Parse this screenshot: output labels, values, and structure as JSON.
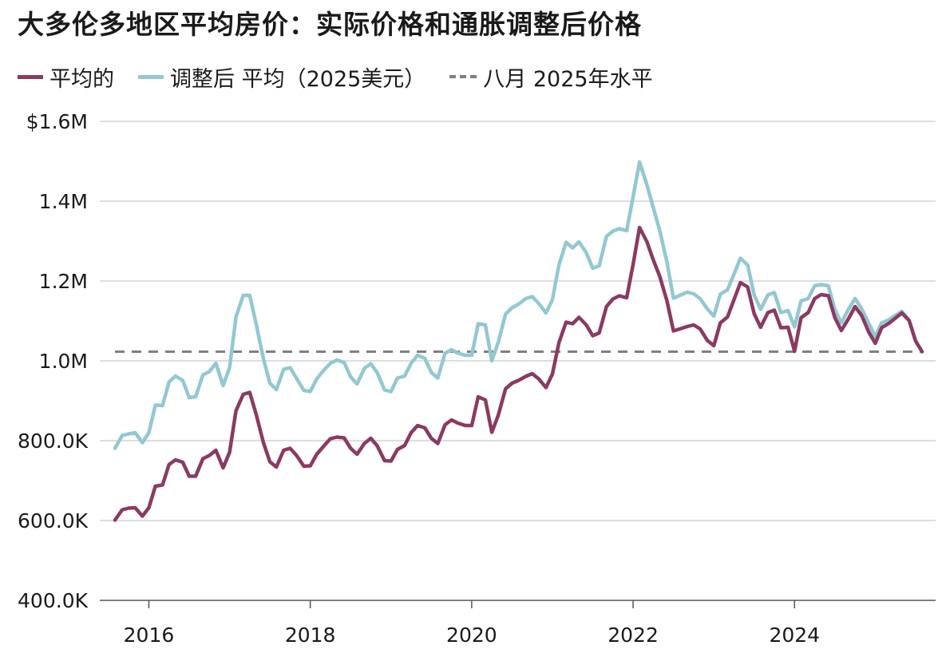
{
  "chart_data": {
    "type": "line",
    "title": "大多伦多地区平均房价：实际价格和通胀调整后价格",
    "xlabel": "",
    "ylabel": "",
    "ylim": [
      400000,
      1600000
    ],
    "xlim": [
      2015.58,
      2025.58
    ],
    "grid": true,
    "legend_position": "top-left",
    "y_ticks": [
      {
        "value": 1600000,
        "label": "$1.6M"
      },
      {
        "value": 1400000,
        "label": "1.4M"
      },
      {
        "value": 1200000,
        "label": "1.2M"
      },
      {
        "value": 1000000,
        "label": "1.0M"
      },
      {
        "value": 800000,
        "label": "800.0K"
      },
      {
        "value": 600000,
        "label": "600.0K"
      },
      {
        "value": 400000,
        "label": "400.0K"
      }
    ],
    "x_ticks": [
      {
        "value": 2016,
        "label": "2016"
      },
      {
        "value": 2018,
        "label": "2018"
      },
      {
        "value": 2020,
        "label": "2020"
      },
      {
        "value": 2022,
        "label": "2022"
      },
      {
        "value": 2024,
        "label": "2024"
      }
    ],
    "series": [
      {
        "name": "平均的",
        "color": "#8b3a62",
        "dash": false,
        "points": [
          [
            2015.58,
            601000
          ],
          [
            2015.67,
            627000
          ],
          [
            2015.75,
            631000
          ],
          [
            2015.83,
            632000
          ],
          [
            2015.92,
            611000
          ],
          [
            2016.0,
            632000
          ],
          [
            2016.08,
            686000
          ],
          [
            2016.17,
            689000
          ],
          [
            2016.25,
            740000
          ],
          [
            2016.33,
            752000
          ],
          [
            2016.42,
            746000
          ],
          [
            2016.5,
            711000
          ],
          [
            2016.58,
            711000
          ],
          [
            2016.67,
            755000
          ],
          [
            2016.75,
            763000
          ],
          [
            2016.83,
            776000
          ],
          [
            2016.92,
            732000
          ],
          [
            2017.0,
            771000
          ],
          [
            2017.08,
            875000
          ],
          [
            2017.17,
            916000
          ],
          [
            2017.25,
            921000
          ],
          [
            2017.33,
            866000
          ],
          [
            2017.42,
            795000
          ],
          [
            2017.5,
            747000
          ],
          [
            2017.58,
            734000
          ],
          [
            2017.67,
            776000
          ],
          [
            2017.75,
            781000
          ],
          [
            2017.83,
            763000
          ],
          [
            2017.92,
            736000
          ],
          [
            2018.0,
            737000
          ],
          [
            2018.08,
            766000
          ],
          [
            2018.17,
            787000
          ],
          [
            2018.25,
            805000
          ],
          [
            2018.33,
            809000
          ],
          [
            2018.42,
            807000
          ],
          [
            2018.5,
            781000
          ],
          [
            2018.58,
            766000
          ],
          [
            2018.67,
            793000
          ],
          [
            2018.75,
            806000
          ],
          [
            2018.83,
            787000
          ],
          [
            2018.92,
            750000
          ],
          [
            2019.0,
            749000
          ],
          [
            2019.08,
            778000
          ],
          [
            2019.17,
            788000
          ],
          [
            2019.25,
            820000
          ],
          [
            2019.33,
            838000
          ],
          [
            2019.42,
            832000
          ],
          [
            2019.5,
            806000
          ],
          [
            2019.58,
            793000
          ],
          [
            2019.67,
            840000
          ],
          [
            2019.75,
            852000
          ],
          [
            2019.83,
            844000
          ],
          [
            2019.92,
            838000
          ],
          [
            2020.0,
            838000
          ],
          [
            2020.08,
            910000
          ],
          [
            2020.17,
            902000
          ],
          [
            2020.25,
            821000
          ],
          [
            2020.33,
            864000
          ],
          [
            2020.42,
            930000
          ],
          [
            2020.5,
            944000
          ],
          [
            2020.58,
            951000
          ],
          [
            2020.67,
            961000
          ],
          [
            2020.75,
            968000
          ],
          [
            2020.83,
            955000
          ],
          [
            2020.92,
            933000
          ],
          [
            2021.0,
            967000
          ],
          [
            2021.08,
            1045000
          ],
          [
            2021.17,
            1097000
          ],
          [
            2021.25,
            1093000
          ],
          [
            2021.33,
            1109000
          ],
          [
            2021.42,
            1090000
          ],
          [
            2021.5,
            1063000
          ],
          [
            2021.58,
            1070000
          ],
          [
            2021.67,
            1136000
          ],
          [
            2021.75,
            1155000
          ],
          [
            2021.83,
            1163000
          ],
          [
            2021.92,
            1158000
          ],
          [
            2022.0,
            1242000
          ],
          [
            2022.08,
            1334000
          ],
          [
            2022.17,
            1299000
          ],
          [
            2022.25,
            1253000
          ],
          [
            2022.33,
            1212000
          ],
          [
            2022.42,
            1150000
          ],
          [
            2022.5,
            1075000
          ],
          [
            2022.58,
            1080000
          ],
          [
            2022.67,
            1086000
          ],
          [
            2022.75,
            1090000
          ],
          [
            2022.83,
            1080000
          ],
          [
            2022.92,
            1051000
          ],
          [
            2023.0,
            1038000
          ],
          [
            2023.08,
            1095000
          ],
          [
            2023.17,
            1110000
          ],
          [
            2023.25,
            1153000
          ],
          [
            2023.33,
            1196000
          ],
          [
            2023.42,
            1185000
          ],
          [
            2023.5,
            1118000
          ],
          [
            2023.58,
            1084000
          ],
          [
            2023.67,
            1121000
          ],
          [
            2023.75,
            1127000
          ],
          [
            2023.83,
            1083000
          ],
          [
            2023.92,
            1084000
          ],
          [
            2024.0,
            1024000
          ],
          [
            2024.08,
            1108000
          ],
          [
            2024.17,
            1121000
          ],
          [
            2024.25,
            1156000
          ],
          [
            2024.33,
            1166000
          ],
          [
            2024.42,
            1163000
          ],
          [
            2024.5,
            1108000
          ],
          [
            2024.58,
            1076000
          ],
          [
            2024.67,
            1106000
          ],
          [
            2024.75,
            1136000
          ],
          [
            2024.83,
            1114000
          ],
          [
            2024.92,
            1072000
          ],
          [
            2025.0,
            1044000
          ],
          [
            2025.08,
            1083000
          ],
          [
            2025.17,
            1094000
          ],
          [
            2025.25,
            1107000
          ],
          [
            2025.33,
            1120000
          ],
          [
            2025.42,
            1101000
          ],
          [
            2025.5,
            1050000
          ],
          [
            2025.58,
            1023000
          ]
        ]
      },
      {
        "name": "调整后 平均（2025美元）",
        "color": "#92c8d2",
        "dash": false,
        "points": [
          [
            2015.58,
            781000
          ],
          [
            2015.67,
            813000
          ],
          [
            2015.75,
            817000
          ],
          [
            2015.83,
            820000
          ],
          [
            2015.92,
            795000
          ],
          [
            2016.0,
            820000
          ],
          [
            2016.08,
            889000
          ],
          [
            2016.17,
            888000
          ],
          [
            2016.25,
            947000
          ],
          [
            2016.33,
            962000
          ],
          [
            2016.42,
            951000
          ],
          [
            2016.5,
            908000
          ],
          [
            2016.58,
            910000
          ],
          [
            2016.67,
            965000
          ],
          [
            2016.75,
            973000
          ],
          [
            2016.83,
            994000
          ],
          [
            2016.92,
            938000
          ],
          [
            2017.0,
            983000
          ],
          [
            2017.08,
            1110000
          ],
          [
            2017.17,
            1164000
          ],
          [
            2017.25,
            1164000
          ],
          [
            2017.33,
            1092000
          ],
          [
            2017.42,
            1005000
          ],
          [
            2017.5,
            944000
          ],
          [
            2017.58,
            928000
          ],
          [
            2017.67,
            979000
          ],
          [
            2017.75,
            983000
          ],
          [
            2017.83,
            956000
          ],
          [
            2017.92,
            926000
          ],
          [
            2018.0,
            923000
          ],
          [
            2018.08,
            955000
          ],
          [
            2018.17,
            977000
          ],
          [
            2018.25,
            994000
          ],
          [
            2018.33,
            1002000
          ],
          [
            2018.42,
            996000
          ],
          [
            2018.5,
            960000
          ],
          [
            2018.58,
            942000
          ],
          [
            2018.67,
            981000
          ],
          [
            2018.75,
            993000
          ],
          [
            2018.83,
            970000
          ],
          [
            2018.92,
            927000
          ],
          [
            2019.0,
            923000
          ],
          [
            2019.08,
            957000
          ],
          [
            2019.17,
            962000
          ],
          [
            2019.25,
            994000
          ],
          [
            2019.33,
            1014000
          ],
          [
            2019.42,
            1006000
          ],
          [
            2019.5,
            971000
          ],
          [
            2019.58,
            957000
          ],
          [
            2019.67,
            1019000
          ],
          [
            2019.75,
            1028000
          ],
          [
            2019.83,
            1019000
          ],
          [
            2019.92,
            1014000
          ],
          [
            2020.0,
            1014000
          ],
          [
            2020.08,
            1093000
          ],
          [
            2020.17,
            1090000
          ],
          [
            2020.25,
            1000000
          ],
          [
            2020.33,
            1047000
          ],
          [
            2020.42,
            1117000
          ],
          [
            2020.5,
            1133000
          ],
          [
            2020.58,
            1142000
          ],
          [
            2020.67,
            1156000
          ],
          [
            2020.75,
            1161000
          ],
          [
            2020.83,
            1144000
          ],
          [
            2020.92,
            1120000
          ],
          [
            2021.0,
            1153000
          ],
          [
            2021.08,
            1240000
          ],
          [
            2021.17,
            1297000
          ],
          [
            2021.25,
            1283000
          ],
          [
            2021.33,
            1298000
          ],
          [
            2021.42,
            1271000
          ],
          [
            2021.5,
            1232000
          ],
          [
            2021.58,
            1238000
          ],
          [
            2021.67,
            1312000
          ],
          [
            2021.75,
            1325000
          ],
          [
            2021.83,
            1331000
          ],
          [
            2021.92,
            1326000
          ],
          [
            2022.0,
            1411000
          ],
          [
            2022.08,
            1498000
          ],
          [
            2022.17,
            1442000
          ],
          [
            2022.25,
            1384000
          ],
          [
            2022.33,
            1327000
          ],
          [
            2022.42,
            1247000
          ],
          [
            2022.5,
            1157000
          ],
          [
            2022.58,
            1164000
          ],
          [
            2022.67,
            1172000
          ],
          [
            2022.75,
            1168000
          ],
          [
            2022.83,
            1156000
          ],
          [
            2022.92,
            1130000
          ],
          [
            2023.0,
            1112000
          ],
          [
            2023.08,
            1167000
          ],
          [
            2023.17,
            1178000
          ],
          [
            2023.25,
            1217000
          ],
          [
            2023.33,
            1257000
          ],
          [
            2023.42,
            1240000
          ],
          [
            2023.5,
            1165000
          ],
          [
            2023.58,
            1129000
          ],
          [
            2023.67,
            1165000
          ],
          [
            2023.75,
            1171000
          ],
          [
            2023.83,
            1121000
          ],
          [
            2023.92,
            1126000
          ],
          [
            2024.0,
            1085000
          ],
          [
            2024.08,
            1150000
          ],
          [
            2024.17,
            1156000
          ],
          [
            2024.25,
            1188000
          ],
          [
            2024.33,
            1191000
          ],
          [
            2024.42,
            1188000
          ],
          [
            2024.5,
            1128000
          ],
          [
            2024.58,
            1095000
          ],
          [
            2024.67,
            1130000
          ],
          [
            2024.75,
            1156000
          ],
          [
            2024.83,
            1131000
          ],
          [
            2024.92,
            1094000
          ],
          [
            2025.0,
            1061000
          ],
          [
            2025.08,
            1095000
          ],
          [
            2025.17,
            1103000
          ],
          [
            2025.25,
            1114000
          ],
          [
            2025.33,
            1124000
          ],
          [
            2025.42,
            1102000
          ],
          [
            2025.5,
            1050000
          ],
          [
            2025.58,
            1023000
          ]
        ]
      },
      {
        "name": "八月 2025年水平",
        "color": "#808080",
        "dash": true,
        "points": [
          [
            2015.58,
            1023000
          ],
          [
            2025.58,
            1023000
          ]
        ]
      }
    ]
  }
}
